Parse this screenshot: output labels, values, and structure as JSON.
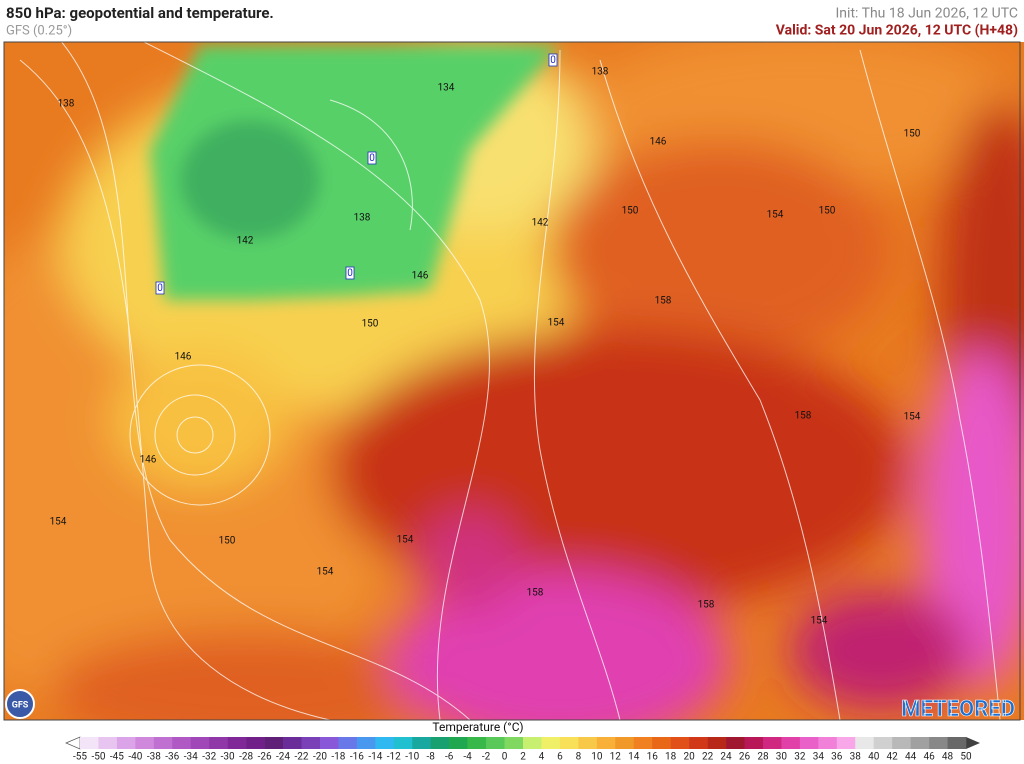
{
  "header": {
    "title": "850 hPa: geopotential and temperature.",
    "model": "GFS (0.25°)",
    "init": "Init: Thu 18 Jun 2026, 12 UTC",
    "valid": "Valid: Sat 20 Jun 2026, 12 UTC (H+48)"
  },
  "map": {
    "contour_labels": [
      138,
      134,
      138,
      146,
      150,
      0,
      138,
      142,
      150,
      154,
      150,
      142,
      0,
      146,
      0,
      150,
      154,
      158,
      146,
      158,
      154,
      146,
      154,
      150,
      154,
      154,
      158,
      158,
      154,
      0
    ]
  },
  "colorbar": {
    "label": "Temperature (°C)",
    "ticks": [
      -55,
      -50,
      -45,
      -40,
      -38,
      -36,
      -34,
      -32,
      -30,
      -28,
      -26,
      -24,
      -22,
      -20,
      -18,
      -16,
      -14,
      -12,
      -10,
      -8,
      -6,
      -4,
      -2,
      0,
      2,
      4,
      6,
      8,
      10,
      12,
      14,
      16,
      18,
      20,
      22,
      24,
      26,
      28,
      30,
      32,
      34,
      36,
      38,
      40,
      42,
      44,
      46,
      48,
      50
    ],
    "colors": [
      "#f4e4f8",
      "#e8c4f0",
      "#dca4e8",
      "#d088dc",
      "#c070d0",
      "#b058c4",
      "#a048b8",
      "#9038a8",
      "#802898",
      "#702088",
      "#602078",
      "#6a2c98",
      "#7a40b8",
      "#8858d8",
      "#6878e8",
      "#4898f0",
      "#30b8f0",
      "#20c0d0",
      "#18a8a0",
      "#18a070",
      "#20a850",
      "#38b848",
      "#58c858",
      "#80d860",
      "#c8f070",
      "#f0f068",
      "#f8e058",
      "#f8c848",
      "#f8b038",
      "#f09828",
      "#f08020",
      "#e86818",
      "#e05018",
      "#d03818",
      "#b82818",
      "#a01830",
      "#b81858",
      "#d02880",
      "#e040a8",
      "#e860c8",
      "#f080d8",
      "#f8a8e8",
      "#e8e8e8",
      "#d0d0d0",
      "#b8b8b8",
      "#a0a0a0",
      "#888888",
      "#686868"
    ]
  },
  "logos": {
    "model_badge": "GFS",
    "brand": "METEORED"
  }
}
